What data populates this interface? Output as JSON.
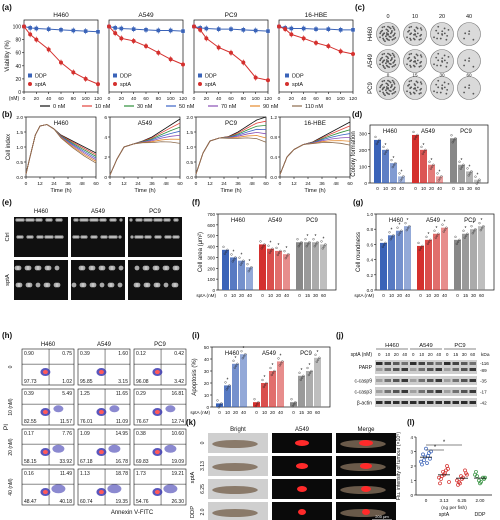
{
  "panel_letters": [
    "(a)",
    "(b)",
    "(c)",
    "(d)",
    "(e)",
    "(f)",
    "(g)",
    "(h)",
    "(i)",
    "(j)",
    "(k)",
    "(l)"
  ],
  "panel_a": {
    "ylabel": "Viability (%)",
    "xlabel": "(nM)",
    "legend": [
      "DDP",
      "sptA"
    ],
    "colors": {
      "DDP": "#3a63b8",
      "sptA": "#d4302e"
    },
    "ymin": 0,
    "ymax": 110,
    "yticks": [
      "0",
      "20",
      "40",
      "60",
      "80",
      "100"
    ],
    "subplots": [
      {
        "title": "H460",
        "xticks": [
          "0",
          "20",
          "40",
          "60",
          "80",
          "100",
          "120"
        ],
        "x": [
          0,
          10,
          20,
          40,
          60,
          80,
          100,
          120
        ],
        "DDP": [
          100,
          98,
          97,
          96,
          95,
          94,
          93,
          92
        ],
        "sptA": [
          100,
          88,
          80,
          65,
          45,
          30,
          20,
          12
        ]
      },
      {
        "title": "A549",
        "xticks": [
          "0",
          "20",
          "40",
          "60",
          "80",
          "100",
          "120"
        ],
        "x": [
          0,
          10,
          20,
          40,
          60,
          80,
          100,
          120
        ],
        "DDP": [
          100,
          98,
          97,
          96,
          95,
          94,
          94,
          93
        ],
        "sptA": [
          100,
          90,
          82,
          78,
          70,
          60,
          50,
          42
        ]
      },
      {
        "title": "PC9",
        "xticks": [
          "0",
          "20",
          "40",
          "60",
          "80",
          "100",
          "120"
        ],
        "x": [
          0,
          10,
          20,
          40,
          60,
          80,
          100,
          120
        ],
        "DDP": [
          100,
          98,
          97,
          96,
          96,
          95,
          94,
          93
        ],
        "sptA": [
          100,
          95,
          82,
          68,
          60,
          45,
          22,
          18
        ]
      },
      {
        "title": "16-HBE",
        "xticks": [
          "0",
          "20",
          "40",
          "60",
          "80",
          "100",
          "120"
        ],
        "x": [
          0,
          10,
          20,
          40,
          60,
          80,
          100,
          120
        ],
        "DDP": [
          100,
          98,
          97,
          97,
          96,
          96,
          95,
          95
        ],
        "sptA": [
          100,
          96,
          88,
          82,
          75,
          70,
          62,
          58
        ]
      }
    ]
  },
  "panel_b": {
    "ylabel": "Cell index",
    "xlabel": "Time (h)",
    "legend": [
      "0 nM",
      "10 nM",
      "30 nM",
      "50 nM",
      "70 nM",
      "90 nM",
      "110 nM"
    ],
    "colors": [
      "#111111",
      "#e2433b",
      "#2f8f3a",
      "#3c63c6",
      "#8a4fb5",
      "#e58a2d",
      "#8b6a4c"
    ],
    "subplots": [
      {
        "title": "H460",
        "yticks": [
          "0.0",
          "0.5",
          "1.0",
          "1.5",
          "2.0"
        ],
        "xticks": [
          "0",
          "12",
          "24",
          "36",
          "48",
          "60"
        ]
      },
      {
        "title": "A549",
        "yticks": [
          "0",
          "2",
          "4",
          "6"
        ],
        "xticks": [
          "0",
          "12",
          "24",
          "36",
          "48",
          "60"
        ]
      },
      {
        "title": "PC9",
        "yticks": [
          "0.0",
          "0.5",
          "1.0",
          "1.5",
          "2.0"
        ],
        "xticks": [
          "0",
          "12",
          "24",
          "36",
          "48",
          "60"
        ]
      },
      {
        "title": "16-HBE",
        "yticks": [
          "0.0",
          "0.4",
          "0.8",
          "1.2"
        ],
        "xticks": [
          "0",
          "12",
          "24",
          "36",
          "48",
          "60"
        ]
      }
    ]
  },
  "panel_c": {
    "cols": [
      "0",
      "10",
      "20",
      "40"
    ],
    "rows": [
      "H460",
      "A549",
      "PC9"
    ],
    "a549_cols": [
      "0",
      "15",
      "30",
      "60"
    ],
    "pc9_cols": [
      "0",
      "15",
      "30",
      "60"
    ]
  },
  "panel_d": {
    "ylabel": "Colony formation",
    "yticks": [
      "0",
      "100",
      "200",
      "300"
    ],
    "groups": [
      {
        "label": "H460",
        "color": "#3a63b8",
        "xt": [
          "0",
          "10",
          "20",
          "40"
        ],
        "values": [
          260,
          200,
          120,
          40
        ]
      },
      {
        "label": "A549",
        "color": "#d4302e",
        "xt": [
          "0",
          "10",
          "20",
          "40"
        ],
        "values": [
          290,
          200,
          110,
          40
        ]
      },
      {
        "label": "PC9",
        "color": "#888888",
        "xt": [
          "0",
          "15",
          "30",
          "60"
        ],
        "values": [
          270,
          110,
          70,
          20
        ]
      }
    ],
    "ymax": 350,
    "stars": [
      "*",
      "*",
      "*",
      "*",
      "*",
      "*",
      "*",
      "*"
    ]
  },
  "panel_e": {
    "cols": [
      "H460",
      "A549",
      "PC9"
    ],
    "rows": [
      "Ctrl",
      "sptA"
    ]
  },
  "panel_f": {
    "ylabel": "Cell area (μm²)",
    "xlabel": "sptA (nM)",
    "yticks": [
      "0",
      "100",
      "200",
      "300",
      "400",
      "500",
      "600",
      "700"
    ],
    "ymax": 700,
    "groups": [
      {
        "label": "H460",
        "color": "#3a63b8",
        "xt": [
          "0",
          "10",
          "20",
          "40"
        ],
        "values": [
          370,
          300,
          270,
          210
        ]
      },
      {
        "label": "A549",
        "color": "#d4302e",
        "xt": [
          "0",
          "10",
          "20",
          "40"
        ],
        "values": [
          420,
          380,
          360,
          330
        ]
      },
      {
        "label": "PC9",
        "color": "#888888",
        "xt": [
          "0",
          "15",
          "30",
          "60"
        ],
        "values": [
          440,
          440,
          440,
          420
        ]
      }
    ]
  },
  "panel_g": {
    "ylabel": "Cell roundness",
    "xlabel": "sptA (nM)",
    "yticks": [
      "0.0",
      "0.2",
      "0.4",
      "0.6",
      "0.8",
      "1.0"
    ],
    "ymax": 1.0,
    "groups": [
      {
        "label": "H460",
        "color": "#3a63b8",
        "xt": [
          "0",
          "10",
          "20",
          "40"
        ],
        "values": [
          0.62,
          0.72,
          0.78,
          0.84
        ]
      },
      {
        "label": "A549",
        "color": "#d4302e",
        "xt": [
          "0",
          "10",
          "20",
          "40"
        ],
        "values": [
          0.58,
          0.66,
          0.74,
          0.82
        ]
      },
      {
        "label": "PC9",
        "color": "#888888",
        "xt": [
          "0",
          "15",
          "30",
          "60"
        ],
        "values": [
          0.66,
          0.74,
          0.8,
          0.84
        ]
      }
    ]
  },
  "panel_h": {
    "ylabel": "PI",
    "xlabel": "Annexin V-FITC",
    "cols": [
      "H460",
      "A549",
      "PC9"
    ],
    "rowlabels": [
      "0",
      "10 (nM)",
      "20 (nM)",
      "40 (nM)"
    ],
    "quadrants": [
      [
        [
          "0.90",
          "0.75",
          "97.73",
          "1.02"
        ],
        [
          "0.39",
          "1.60",
          "95.85",
          "3.15"
        ],
        [
          "0.12",
          "0.42",
          "96.08",
          "3.42"
        ]
      ],
      [
        [
          "0.39",
          "5.49",
          "82.55",
          "11.57"
        ],
        [
          "1.25",
          "11.65",
          "76.01",
          "11.09"
        ],
        [
          "0.29",
          "16.81",
          "76.67",
          "12.74"
        ]
      ],
      [
        [
          "0.17",
          "7.76",
          "58.15",
          "33.92"
        ],
        [
          "1.09",
          "14.95",
          "67.18",
          "16.78"
        ],
        [
          "0.38",
          "10.60",
          "69.83",
          "19.09"
        ]
      ],
      [
        [
          "0.16",
          "11.49",
          "48.47",
          "40.18"
        ],
        [
          "1.13",
          "18.78",
          "60.74",
          "19.35"
        ],
        [
          "1.73",
          "19.21",
          "54.76",
          "26.30"
        ]
      ]
    ]
  },
  "panel_i": {
    "ylabel": "Apoptosis (%)",
    "xlabel": "sptA (nM)",
    "yticks": [
      "0",
      "10",
      "20",
      "30",
      "40",
      "50"
    ],
    "ymax": 50,
    "groups": [
      {
        "label": "H460",
        "color": "#3a63b8",
        "xt": [
          "0",
          "10",
          "20",
          "40"
        ],
        "values": [
          3,
          18,
          36,
          44
        ]
      },
      {
        "label": "A549",
        "color": "#d4302e",
        "xt": [
          "0",
          "10",
          "20",
          "40"
        ],
        "values": [
          4,
          20,
          30,
          38
        ]
      },
      {
        "label": "PC9",
        "color": "#888888",
        "xt": [
          "0",
          "15",
          "30",
          "60"
        ],
        "values": [
          4,
          26,
          30,
          41
        ]
      }
    ]
  },
  "panel_j": {
    "header_cells": [
      "H460",
      "A549",
      "PC9"
    ],
    "row_label": "sptA (nM)",
    "doses": [
      "0",
      "10",
      "20",
      "40",
      "0",
      "10",
      "20",
      "40",
      "0",
      "15",
      "30",
      "60"
    ],
    "kda_label": "kDa",
    "bands": [
      {
        "name": "PARP",
        "kda": [
          "116",
          "89"
        ]
      },
      {
        "name": "c-casp9",
        "kda": [
          "35"
        ]
      },
      {
        "name": "c-casp3",
        "kda": [
          "17"
        ]
      },
      {
        "name": "β-actin",
        "kda": [
          "42"
        ]
      }
    ]
  },
  "panel_k": {
    "cols": [
      "Bright",
      "A549",
      "Merge"
    ],
    "rows": [
      "0",
      "3.13",
      "6.25",
      "2.0"
    ],
    "groups": [
      "sptA",
      "DDP"
    ],
    "scalebar": "200 μm"
  },
  "panel_l": {
    "ylabel": "Flu. intensity of tumour (×10⁶)",
    "xlabel": "(ng per fish)",
    "xticks": [
      "0",
      "3.13",
      "6.25",
      "2.00"
    ],
    "groups": [
      "sptA",
      "DDP"
    ],
    "yticks": [
      "0",
      "1",
      "2",
      "3",
      "4"
    ],
    "ymax": 4,
    "colors": [
      "#3a63b8",
      "#d4302e",
      "#d4302e",
      "#2f8f3a"
    ],
    "points": [
      [
        2.3,
        2.6,
        2.9,
        2.1,
        3.2,
        2.5,
        2.8,
        2.2,
        3.0,
        2.4,
        2.7
      ],
      [
        1.2,
        1.6,
        2.0,
        0.8,
        1.4,
        1.8,
        1.1,
        1.5,
        0.9,
        1.3,
        1.7
      ],
      [
        1.0,
        1.3,
        1.7,
        0.7,
        1.1,
        1.5,
        0.9,
        1.2,
        1.4,
        0.8
      ],
      [
        1.4,
        1.0,
        1.2,
        1.6,
        0.8,
        1.1,
        1.3,
        0.9,
        1.2
      ]
    ]
  }
}
